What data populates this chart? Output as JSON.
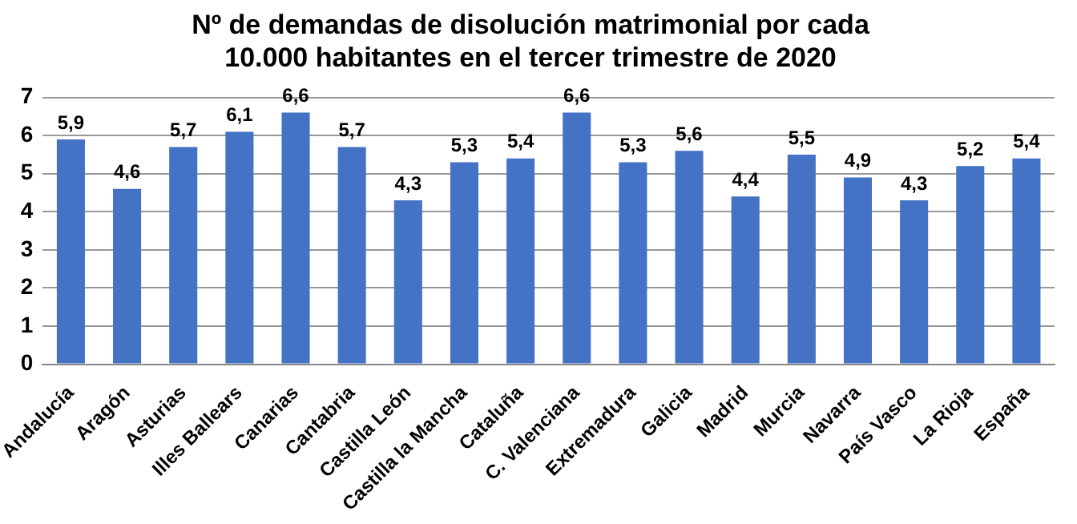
{
  "chart_data": {
    "type": "bar",
    "title": "Nº de demandas de disolución matrimonial por cada\n10.000 habitantes en el tercer trimestre de 2020",
    "categories": [
      "Andalucía",
      "Aragón",
      "Asturias",
      "Illes Ballears",
      "Canarias",
      "Cantabria",
      "Castilla León",
      "Castilla la Mancha",
      "Cataluña",
      "C. Valenciana",
      "Extremadura",
      "Galicia",
      "Madrid",
      "Murcia",
      "Navarra",
      "País Vasco",
      "La Rioja",
      "España"
    ],
    "values": [
      5.9,
      4.6,
      5.7,
      6.1,
      6.6,
      5.7,
      4.3,
      5.3,
      5.4,
      6.6,
      5.3,
      5.6,
      4.4,
      5.5,
      4.9,
      4.3,
      5.2,
      5.4
    ],
    "value_labels": [
      "5,9",
      "4,6",
      "5,7",
      "6,1",
      "6,6",
      "5,7",
      "4,3",
      "5,3",
      "5,4",
      "6,6",
      "5,3",
      "5,6",
      "4,4",
      "5,5",
      "4,9",
      "4,3",
      "5,2",
      "5,4"
    ],
    "color": "#4472c4",
    "ylim": [
      0,
      7
    ],
    "yticks": [
      0,
      1,
      2,
      3,
      4,
      5,
      6,
      7
    ],
    "grid": "y",
    "legend": false
  }
}
